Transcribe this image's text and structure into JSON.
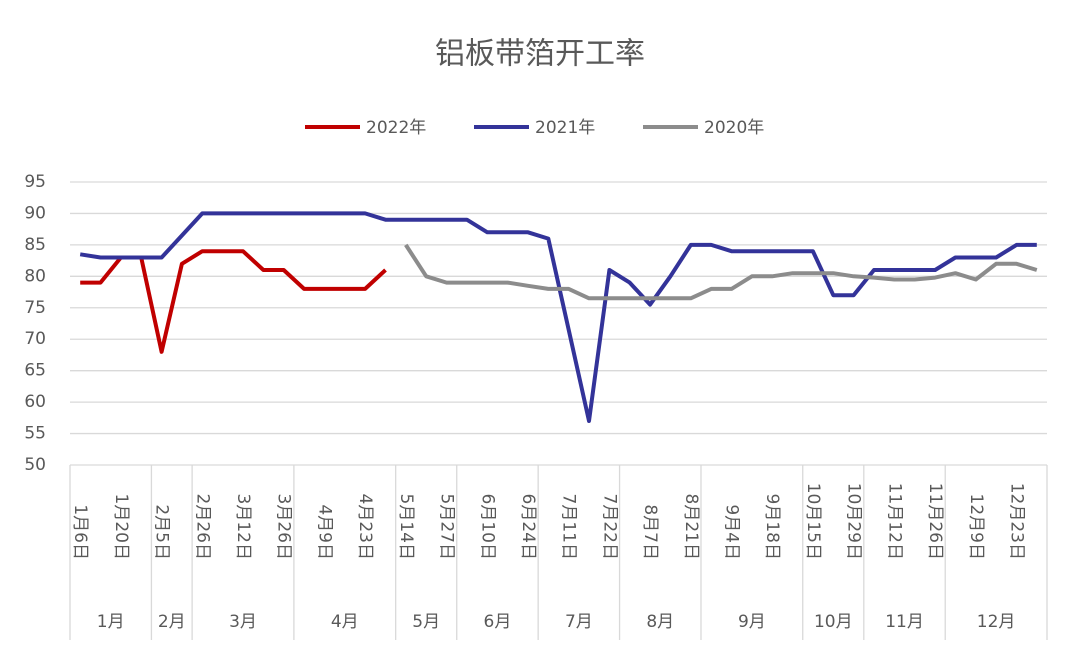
{
  "chart_data": {
    "type": "line",
    "title": "铝板带箔开工率",
    "categories": [
      "1月6日",
      null,
      "1月20日",
      null,
      "2月5日",
      null,
      "2月26日",
      null,
      "3月12日",
      null,
      "3月26日",
      null,
      "4月9日",
      null,
      "4月23日",
      null,
      "5月14日",
      null,
      "5月27日",
      null,
      "6月10日",
      null,
      "6月24日",
      null,
      "7月11日",
      null,
      "7月22日",
      null,
      "8月7日",
      null,
      "8月21日",
      null,
      "9月4日",
      null,
      "9月18日",
      null,
      "10月15日",
      null,
      "10月29日",
      null,
      "11月12日",
      null,
      "11月26日",
      null,
      "12月9日",
      null,
      "12月23日",
      null
    ],
    "groups": [
      {
        "label": "1月",
        "count": 4
      },
      {
        "label": "2月",
        "count": 2
      },
      {
        "label": "3月",
        "count": 5
      },
      {
        "label": "4月",
        "count": 5
      },
      {
        "label": "5月",
        "count": 3
      },
      {
        "label": "6月",
        "count": 4
      },
      {
        "label": "7月",
        "count": 4
      },
      {
        "label": "8月",
        "count": 4
      },
      {
        "label": "9月",
        "count": 5
      },
      {
        "label": "10月",
        "count": 3
      },
      {
        "label": "11月",
        "count": 4
      },
      {
        "label": "12月",
        "count": 5
      }
    ],
    "series": [
      {
        "name": "2022年",
        "color": "#c00000",
        "values": [
          79,
          79,
          83,
          83,
          68,
          82,
          84,
          84,
          84,
          81,
          81,
          78,
          78,
          78,
          78,
          81,
          null,
          null,
          null,
          null,
          null,
          null,
          null,
          null,
          null,
          null,
          null,
          null,
          null,
          null,
          null,
          null,
          null,
          null,
          null,
          null,
          null,
          null,
          null,
          null,
          null,
          null,
          null,
          null,
          null,
          null,
          null,
          null
        ]
      },
      {
        "name": "2021年",
        "color": "#333399",
        "values": [
          83.5,
          83,
          83,
          83,
          83,
          86.5,
          90,
          90,
          90,
          90,
          90,
          90,
          90,
          90,
          90,
          89,
          89,
          89,
          89,
          89,
          87,
          87,
          87,
          86,
          71.5,
          57,
          81,
          79,
          75.5,
          80,
          85,
          85,
          84,
          84,
          84,
          84,
          84,
          77,
          77,
          81,
          81,
          81,
          81,
          83,
          83,
          83,
          85,
          85
        ]
      },
      {
        "name": "2020年",
        "color": "#8c8c8c",
        "values": [
          null,
          null,
          null,
          null,
          null,
          null,
          null,
          null,
          null,
          null,
          null,
          null,
          null,
          null,
          null,
          null,
          85,
          80,
          79,
          79,
          79,
          79,
          78.5,
          78,
          78,
          76.5,
          76.5,
          76.5,
          76.5,
          76.5,
          76.5,
          78,
          78,
          80,
          80,
          80.5,
          80.5,
          80.5,
          80,
          79.8,
          79.5,
          79.5,
          79.8,
          80.5,
          79.5,
          82,
          82,
          81
        ]
      }
    ],
    "ylim": [
      50,
      95
    ],
    "yticks": [
      50,
      55,
      60,
      65,
      70,
      75,
      80,
      85,
      90,
      95
    ],
    "grid": true,
    "legend": "top"
  }
}
